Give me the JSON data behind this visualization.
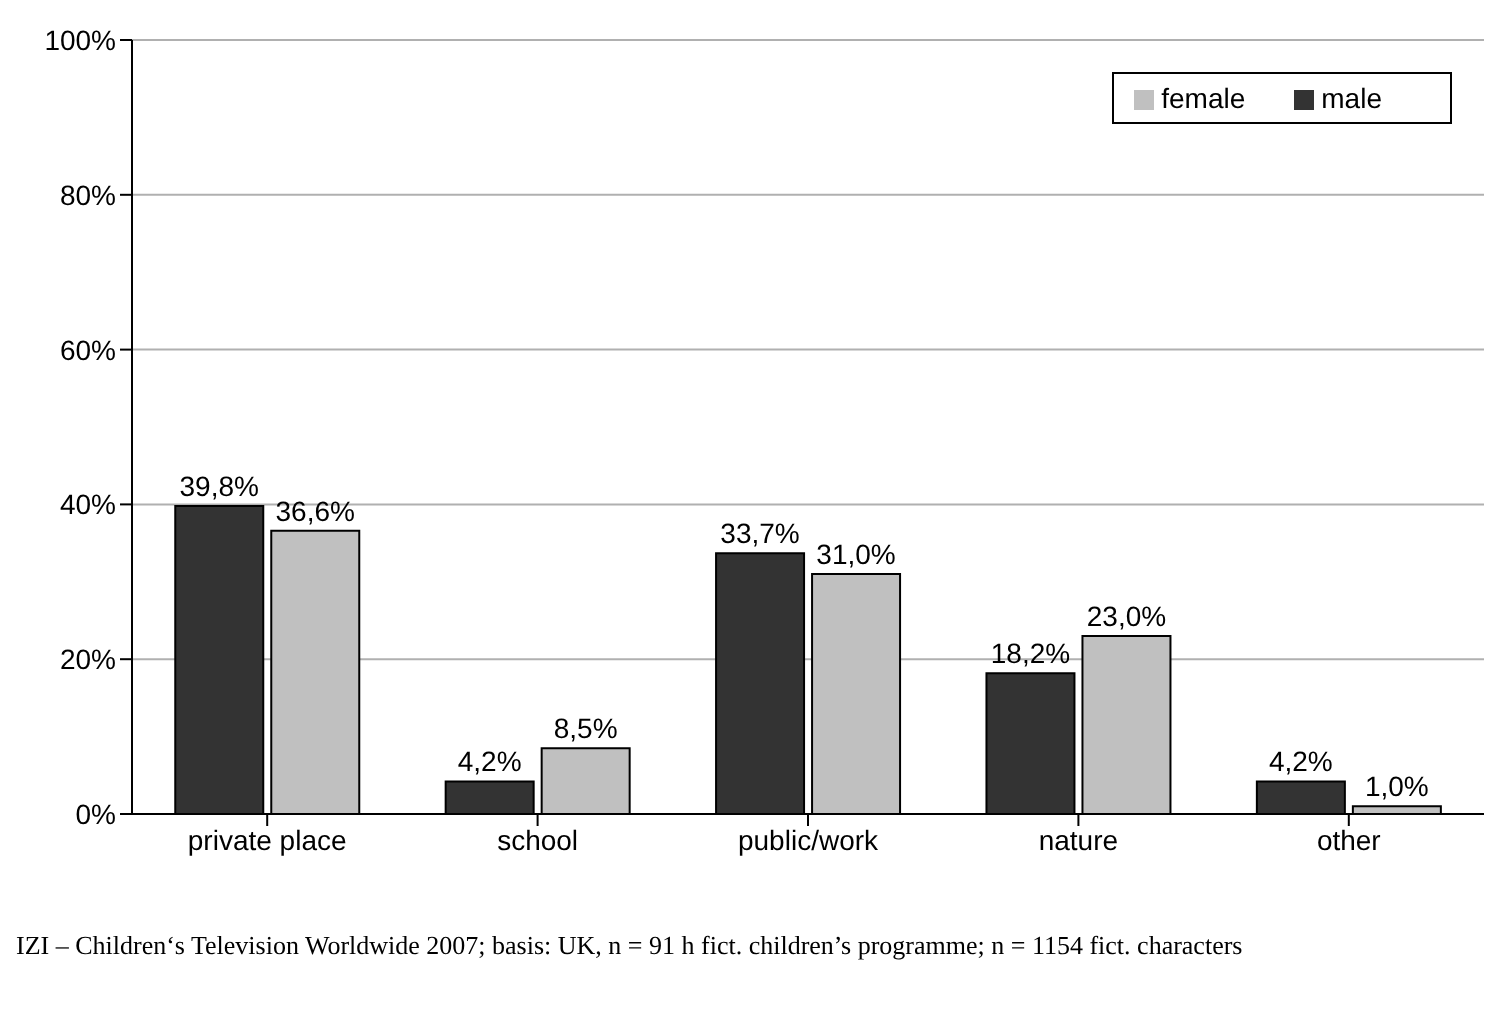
{
  "chart_data": {
    "type": "bar",
    "categories": [
      "private place",
      "school",
      "public/work",
      "nature",
      "other"
    ],
    "series": [
      {
        "name": "male",
        "color": "#333333",
        "values": [
          39.8,
          4.2,
          33.7,
          18.2,
          4.2
        ],
        "value_labels": [
          "39,8%",
          "4,2%",
          "33,7%",
          "18,2%",
          "4,2%"
        ]
      },
      {
        "name": "female",
        "color": "#c0c0c0",
        "values": [
          36.6,
          8.5,
          31.0,
          23.0,
          1.0
        ],
        "value_labels": [
          "36,6%",
          "8,5%",
          "31,0%",
          "23,0%",
          "1,0%"
        ]
      }
    ],
    "ylim": [
      0,
      100
    ],
    "yticks": [
      {
        "value": 0,
        "label": "0%"
      },
      {
        "value": 20,
        "label": "20%"
      },
      {
        "value": 40,
        "label": "40%"
      },
      {
        "value": 60,
        "label": "60%"
      },
      {
        "value": 80,
        "label": "80%"
      },
      {
        "value": 100,
        "label": "100%"
      }
    ],
    "grid": "y",
    "legend": "top right",
    "annotations": [
      "IZI – Children‘s Television Worldwide 2007; basis: UK, n = 91 h fict. children’s programme; n = 1154 fict. characters"
    ]
  }
}
